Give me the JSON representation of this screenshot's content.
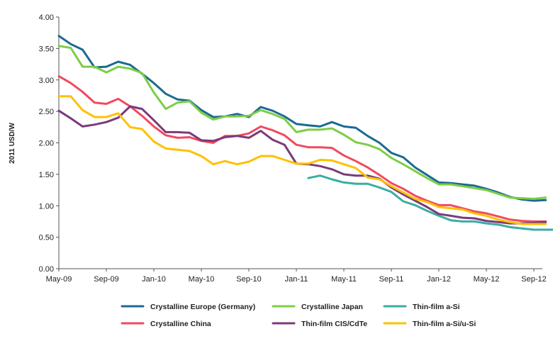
{
  "chart_data": {
    "type": "line",
    "title": "",
    "xlabel": "",
    "ylabel": "2011 USD/W",
    "ylim": [
      0,
      4
    ],
    "y_ticks": [
      "0.00",
      "0.50",
      "1.00",
      "1.50",
      "2.00",
      "2.50",
      "3.00",
      "3.50",
      "4.00"
    ],
    "x_ticks": [
      "May-09",
      "Sep-09",
      "Jan-10",
      "May-10",
      "Sep-10",
      "Jan-11",
      "May-11",
      "Sep-11",
      "Jan-12",
      "May-12",
      "Sep-12"
    ],
    "x_months_from_may09": [
      0,
      4,
      8,
      12,
      16,
      20,
      24,
      28,
      32,
      36,
      40
    ],
    "legend_position": "bottom",
    "grid": false,
    "series": [
      {
        "name": "Crystalline Europe (Germany)",
        "color": "#1b6a93",
        "start_month": 0,
        "values": [
          3.7,
          3.57,
          3.48,
          3.2,
          3.21,
          3.29,
          3.24,
          3.1,
          2.95,
          2.78,
          2.69,
          2.67,
          2.52,
          2.41,
          2.42,
          2.46,
          2.41,
          2.57,
          2.51,
          2.42,
          2.3,
          2.28,
          2.26,
          2.33,
          2.26,
          2.24,
          2.11,
          2.0,
          1.84,
          1.77,
          1.61,
          1.49,
          1.37,
          1.36,
          1.34,
          1.32,
          1.27,
          1.21,
          1.14,
          1.1,
          1.08,
          1.09
        ]
      },
      {
        "name": "Crystalline Japan",
        "color": "#7dcd45",
        "start_month": 0,
        "values": [
          3.54,
          3.51,
          3.21,
          3.21,
          3.12,
          3.21,
          3.18,
          3.11,
          2.8,
          2.54,
          2.64,
          2.66,
          2.48,
          2.37,
          2.42,
          2.42,
          2.43,
          2.52,
          2.46,
          2.38,
          2.17,
          2.21,
          2.21,
          2.23,
          2.13,
          2.01,
          1.97,
          1.9,
          1.76,
          1.66,
          1.55,
          1.44,
          1.34,
          1.34,
          1.31,
          1.28,
          1.25,
          1.19,
          1.13,
          1.12,
          1.11,
          1.13
        ]
      },
      {
        "name": "Thin-film a-Si",
        "color": "#3aada0",
        "start_month": 21,
        "values": [
          1.44,
          1.48,
          1.42,
          1.37,
          1.35,
          1.35,
          1.29,
          1.22,
          1.07,
          1.01,
          0.92,
          0.84,
          0.77,
          0.75,
          0.75,
          0.72,
          0.7,
          0.66,
          0.64,
          0.62,
          0.62,
          0.62
        ]
      },
      {
        "name": "Crystalline China",
        "color": "#f04a5e",
        "start_month": 0,
        "values": [
          3.06,
          2.95,
          2.81,
          2.64,
          2.62,
          2.7,
          2.58,
          2.43,
          2.26,
          2.12,
          2.08,
          2.09,
          2.03,
          2.0,
          2.11,
          2.11,
          2.15,
          2.26,
          2.2,
          2.12,
          1.97,
          1.93,
          1.93,
          1.92,
          1.8,
          1.71,
          1.61,
          1.49,
          1.36,
          1.27,
          1.16,
          1.08,
          1.01,
          1.01,
          0.96,
          0.91,
          0.88,
          0.83,
          0.78,
          0.76,
          0.75,
          0.75
        ]
      },
      {
        "name": "Thin-film CIS/CdTe",
        "color": "#7a3a7c",
        "start_month": 0,
        "values": [
          2.51,
          2.39,
          2.26,
          2.29,
          2.33,
          2.4,
          2.58,
          2.54,
          2.36,
          2.17,
          2.17,
          2.16,
          2.04,
          2.03,
          2.09,
          2.11,
          2.08,
          2.19,
          2.05,
          1.97,
          1.67,
          1.66,
          1.63,
          1.58,
          1.5,
          1.48,
          1.48,
          1.43,
          1.29,
          1.18,
          1.08,
          0.98,
          0.87,
          0.84,
          0.81,
          0.8,
          0.76,
          0.74,
          0.72,
          0.72,
          0.73,
          0.74
        ]
      },
      {
        "name": "Thin-film a-Si/u-Si",
        "color": "#ffc000",
        "start_month": 0,
        "values": [
          2.74,
          2.74,
          2.52,
          2.41,
          2.41,
          2.47,
          2.25,
          2.22,
          2.02,
          1.91,
          1.89,
          1.87,
          1.79,
          1.66,
          1.71,
          1.66,
          1.7,
          1.79,
          1.79,
          1.73,
          1.67,
          1.67,
          1.73,
          1.72,
          1.66,
          1.6,
          1.45,
          1.42,
          1.31,
          1.21,
          1.11,
          1.06,
          0.98,
          0.96,
          0.94,
          0.88,
          0.84,
          0.78,
          0.74,
          0.71,
          0.71,
          0.71
        ]
      }
    ]
  }
}
